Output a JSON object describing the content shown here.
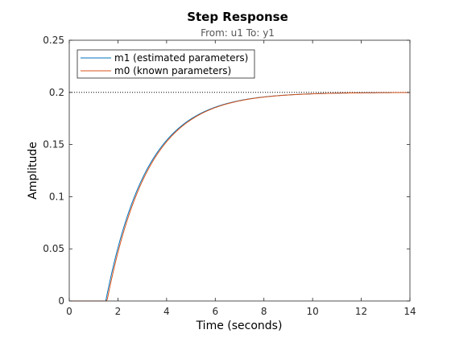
{
  "chart_data": {
    "type": "line",
    "title": "Step Response",
    "subtitle": "From: u1  To: y1",
    "xlabel": "Time (seconds)",
    "ylabel": "Amplitude",
    "xlim": [
      0,
      14
    ],
    "ylim": [
      0,
      0.25
    ],
    "xticks": [
      "0",
      "2",
      "4",
      "6",
      "8",
      "10",
      "12",
      "14"
    ],
    "yticks": [
      "0",
      "0.05",
      "0.1",
      "0.15",
      "0.2",
      "0.25"
    ],
    "reference_line": {
      "y": 0.2,
      "style": "dotted"
    },
    "legend_position": "top-left",
    "grid": false,
    "series": [
      {
        "name": "m1 (estimated parameters)",
        "color": "#0072BD",
        "delay": 1.5,
        "gain": 0.2,
        "time_constant": 1.7
      },
      {
        "name": "m0 (known parameters)",
        "color": "#D95319",
        "delay": 1.55,
        "gain": 0.2,
        "time_constant": 1.7
      }
    ]
  }
}
